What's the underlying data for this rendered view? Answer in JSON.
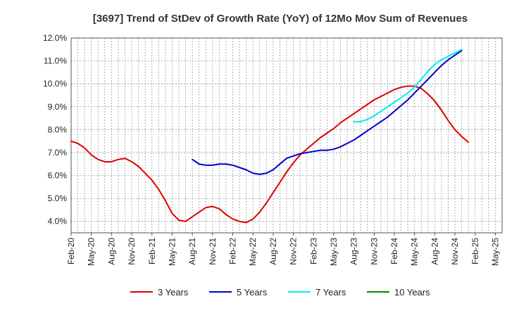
{
  "chart_data": {
    "type": "line",
    "title": "[3697]  Trend of StDev of Growth Rate (YoY) of 12Mo Mov Sum of Revenues",
    "xlabel": "",
    "ylabel": "",
    "ylim": [
      3.5,
      12.0
    ],
    "yticks": [
      4.0,
      5.0,
      6.0,
      7.0,
      8.0,
      9.0,
      10.0,
      11.0,
      12.0
    ],
    "ytick_labels": [
      "4.0%",
      "5.0%",
      "6.0%",
      "7.0%",
      "8.0%",
      "9.0%",
      "10.0%",
      "11.0%",
      "12.0%"
    ],
    "x_tick_labels": [
      "Feb-20",
      "May-20",
      "Aug-20",
      "Nov-20",
      "Feb-21",
      "May-21",
      "Aug-21",
      "Nov-21",
      "Feb-22",
      "May-22",
      "Aug-22",
      "Nov-22",
      "Feb-23",
      "May-23",
      "Aug-23",
      "Nov-23",
      "Feb-24",
      "May-24",
      "Aug-24",
      "Nov-24",
      "Feb-25",
      "May-25"
    ],
    "x_months_total": 64,
    "grid": true,
    "legend_position": "bottom",
    "series": [
      {
        "name": "3 Years",
        "color": "#dd0000",
        "start_month": 0,
        "values": [
          7.5,
          7.4,
          7.2,
          6.9,
          6.7,
          6.6,
          6.6,
          6.7,
          6.75,
          6.6,
          6.4,
          6.1,
          5.8,
          5.4,
          4.9,
          4.35,
          4.05,
          4.0,
          4.2,
          4.4,
          4.6,
          4.65,
          4.55,
          4.3,
          4.1,
          4.0,
          3.95,
          4.1,
          4.4,
          4.8,
          5.25,
          5.7,
          6.15,
          6.55,
          6.9,
          7.15,
          7.4,
          7.65,
          7.85,
          8.05,
          8.3,
          8.5,
          8.7,
          8.9,
          9.1,
          9.3,
          9.45,
          9.6,
          9.75,
          9.85,
          9.9,
          9.9,
          9.8,
          9.55,
          9.25,
          8.85,
          8.4,
          8.0,
          7.7,
          7.45
        ]
      },
      {
        "name": "5 Years",
        "color": "#0000cc",
        "start_month": 18,
        "values": [
          6.7,
          6.5,
          6.45,
          6.45,
          6.5,
          6.5,
          6.45,
          6.35,
          6.25,
          6.1,
          6.05,
          6.1,
          6.25,
          6.5,
          6.75,
          6.85,
          6.95,
          7.0,
          7.05,
          7.1,
          7.1,
          7.15,
          7.25,
          7.4,
          7.55,
          7.75,
          7.95,
          8.15,
          8.35,
          8.55,
          8.8,
          9.05,
          9.3,
          9.6,
          9.9,
          10.2,
          10.5,
          10.8,
          11.05,
          11.25,
          11.45
        ]
      },
      {
        "name": "7 Years",
        "color": "#00eeee",
        "start_month": 42,
        "values": [
          8.35,
          8.35,
          8.45,
          8.6,
          8.8,
          9.0,
          9.2,
          9.4,
          9.6,
          9.85,
          10.2,
          10.55,
          10.85,
          11.05,
          11.2,
          11.35,
          11.5
        ]
      },
      {
        "name": "10 Years",
        "color": "#008800",
        "start_month": 0,
        "values": []
      }
    ]
  }
}
